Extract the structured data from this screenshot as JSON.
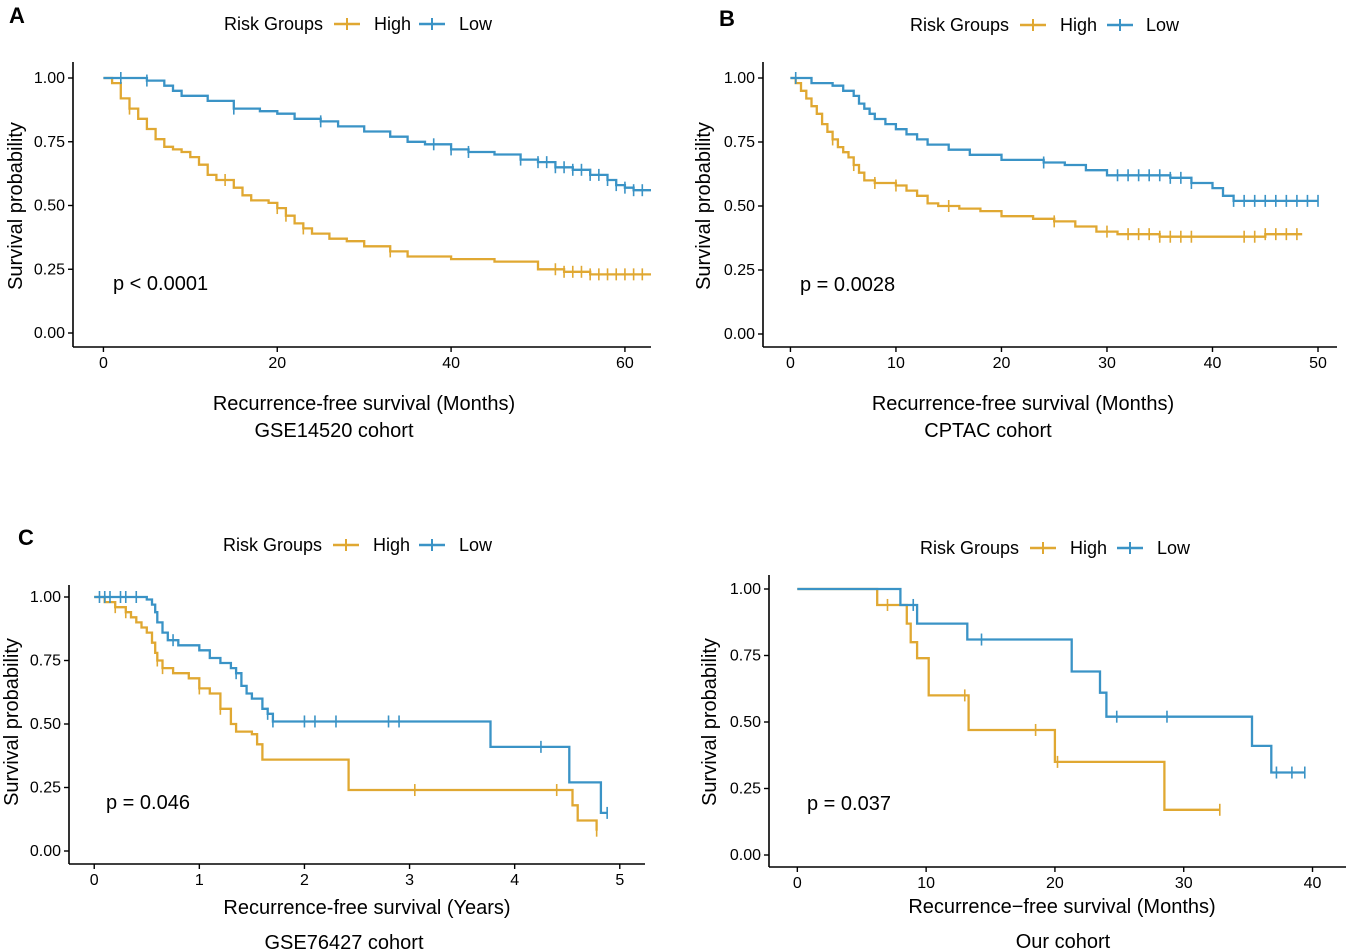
{
  "figure": {
    "series_names": [
      "High",
      "Low"
    ],
    "legend_title": "Risk Groups",
    "colors": {
      "High": "#E0A832",
      "Low": "#3A93C6"
    },
    "y_label": "Survival probability"
  },
  "chart_data": [
    {
      "type": "line",
      "panel": "A",
      "cohort": "GSE14520 cohort",
      "xlabel": "Recurrence-free survival (Months)",
      "ylabel": "Survival probability",
      "p_value": "p < 0.0001",
      "xlim": [
        -3.5,
        63
      ],
      "ylim": [
        0,
        1
      ],
      "x_ticks": [
        0,
        20,
        40,
        60
      ],
      "y_ticks": [
        0,
        0.25,
        0.5,
        0.75,
        1
      ],
      "y_tick_labels": [
        "0.00",
        "0.25",
        "0.50",
        "0.75",
        "1.00"
      ],
      "series": [
        {
          "name": "High",
          "steps": [
            [
              0,
              1
            ],
            [
              1,
              0.98
            ],
            [
              2,
              0.92
            ],
            [
              3,
              0.88
            ],
            [
              4,
              0.84
            ],
            [
              5,
              0.8
            ],
            [
              6,
              0.76
            ],
            [
              7,
              0.73
            ],
            [
              8,
              0.72
            ],
            [
              9,
              0.71
            ],
            [
              10,
              0.69
            ],
            [
              11,
              0.66
            ],
            [
              12,
              0.62
            ],
            [
              13,
              0.6
            ],
            [
              15,
              0.57
            ],
            [
              16,
              0.54
            ],
            [
              17,
              0.52
            ],
            [
              19,
              0.51
            ],
            [
              20,
              0.49
            ],
            [
              21,
              0.46
            ],
            [
              22,
              0.43
            ],
            [
              23,
              0.41
            ],
            [
              24,
              0.39
            ],
            [
              26,
              0.37
            ],
            [
              28,
              0.36
            ],
            [
              30,
              0.34
            ],
            [
              33,
              0.32
            ],
            [
              35,
              0.3
            ],
            [
              38,
              0.3
            ],
            [
              40,
              0.29
            ],
            [
              45,
              0.28
            ],
            [
              50,
              0.25
            ],
            [
              53,
              0.24
            ],
            [
              56,
              0.23
            ],
            [
              60,
              0.23
            ],
            [
              63,
              0.23
            ]
          ],
          "censor_x": [
            3,
            14,
            20,
            21,
            23,
            33,
            52,
            53,
            54,
            55,
            56,
            57,
            58,
            59,
            60,
            61,
            62
          ]
        },
        {
          "name": "Low",
          "steps": [
            [
              0,
              1
            ],
            [
              5,
              0.99
            ],
            [
              7,
              0.97
            ],
            [
              8,
              0.95
            ],
            [
              9,
              0.93
            ],
            [
              12,
              0.91
            ],
            [
              15,
              0.88
            ],
            [
              18,
              0.87
            ],
            [
              20,
              0.86
            ],
            [
              22,
              0.84
            ],
            [
              25,
              0.83
            ],
            [
              27,
              0.81
            ],
            [
              30,
              0.79
            ],
            [
              33,
              0.77
            ],
            [
              35,
              0.75
            ],
            [
              37,
              0.74
            ],
            [
              40,
              0.72
            ],
            [
              42,
              0.71
            ],
            [
              45,
              0.7
            ],
            [
              48,
              0.68
            ],
            [
              50,
              0.67
            ],
            [
              52,
              0.65
            ],
            [
              54,
              0.64
            ],
            [
              56,
              0.62
            ],
            [
              58,
              0.6
            ],
            [
              59,
              0.58
            ],
            [
              60,
              0.57
            ],
            [
              61,
              0.56
            ],
            [
              63,
              0.56
            ]
          ],
          "censor_x": [
            2,
            5,
            15,
            25,
            38,
            40,
            42,
            48,
            50,
            51,
            52,
            53,
            54,
            55,
            56,
            57,
            58,
            59,
            60,
            61,
            62
          ]
        }
      ]
    },
    {
      "type": "line",
      "panel": "B",
      "cohort": "CPTAC cohort",
      "xlabel": "Recurrence-free survival (Months)",
      "ylabel": "Survival probability",
      "p_value": "p = 0.0028",
      "xlim": [
        -2.6,
        51.8
      ],
      "ylim": [
        0,
        1
      ],
      "x_ticks": [
        0,
        10,
        20,
        30,
        40,
        50
      ],
      "y_ticks": [
        0,
        0.25,
        0.5,
        0.75,
        1
      ],
      "y_tick_labels": [
        "0.00",
        "0.25",
        "0.50",
        "0.75",
        "1.00"
      ],
      "series": [
        {
          "name": "High",
          "steps": [
            [
              0,
              1
            ],
            [
              0.5,
              0.98
            ],
            [
              1,
              0.95
            ],
            [
              1.5,
              0.92
            ],
            [
              2,
              0.89
            ],
            [
              2.5,
              0.86
            ],
            [
              3,
              0.82
            ],
            [
              3.5,
              0.79
            ],
            [
              4,
              0.76
            ],
            [
              4.5,
              0.73
            ],
            [
              5,
              0.71
            ],
            [
              5.5,
              0.69
            ],
            [
              6,
              0.66
            ],
            [
              6.5,
              0.63
            ],
            [
              7,
              0.6
            ],
            [
              8,
              0.59
            ],
            [
              10,
              0.58
            ],
            [
              11,
              0.56
            ],
            [
              12,
              0.54
            ],
            [
              13,
              0.51
            ],
            [
              14,
              0.5
            ],
            [
              16,
              0.49
            ],
            [
              18,
              0.48
            ],
            [
              20,
              0.46
            ],
            [
              23,
              0.45
            ],
            [
              25,
              0.44
            ],
            [
              27,
              0.42
            ],
            [
              29,
              0.4
            ],
            [
              31,
              0.39
            ],
            [
              35,
              0.38
            ],
            [
              42,
              0.38
            ],
            [
              45,
              0.39
            ],
            [
              48.5,
              0.39
            ]
          ],
          "censor_x": [
            4,
            6,
            8,
            10,
            15,
            25,
            30,
            32,
            33,
            34,
            35,
            36,
            37,
            38,
            43,
            44,
            45,
            46,
            47,
            48
          ]
        },
        {
          "name": "Low",
          "steps": [
            [
              0,
              1
            ],
            [
              2,
              0.98
            ],
            [
              4,
              0.97
            ],
            [
              5,
              0.95
            ],
            [
              6,
              0.93
            ],
            [
              6.5,
              0.9
            ],
            [
              7,
              0.88
            ],
            [
              7.5,
              0.86
            ],
            [
              8,
              0.84
            ],
            [
              9,
              0.82
            ],
            [
              10,
              0.8
            ],
            [
              11,
              0.78
            ],
            [
              12,
              0.76
            ],
            [
              13,
              0.74
            ],
            [
              15,
              0.72
            ],
            [
              17,
              0.7
            ],
            [
              20,
              0.68
            ],
            [
              24,
              0.67
            ],
            [
              26,
              0.66
            ],
            [
              28,
              0.64
            ],
            [
              30,
              0.62
            ],
            [
              36,
              0.61
            ],
            [
              38,
              0.59
            ],
            [
              40,
              0.57
            ],
            [
              41,
              0.54
            ],
            [
              42,
              0.52
            ],
            [
              46,
              0.52
            ],
            [
              49,
              0.52
            ],
            [
              50,
              0.52
            ]
          ],
          "censor_x": [
            0.5,
            24,
            31,
            32,
            33,
            34,
            35,
            36,
            37,
            38,
            42,
            43,
            44,
            45,
            46,
            47,
            48,
            49,
            50
          ]
        }
      ]
    },
    {
      "type": "line",
      "panel": "C",
      "cohort": "GSE76427 cohort",
      "xlabel": "Recurrence-free survival (Years)",
      "ylabel": "Survival probability",
      "p_value": "p = 0.046",
      "xlim": [
        -0.24,
        5.24
      ],
      "ylim": [
        0,
        1
      ],
      "x_ticks": [
        0,
        1,
        2,
        3,
        4,
        5
      ],
      "y_ticks": [
        0,
        0.25,
        0.5,
        0.75,
        1
      ],
      "y_tick_labels": [
        "0.00",
        "0.25",
        "0.50",
        "0.75",
        "1.00"
      ],
      "series": [
        {
          "name": "High",
          "steps": [
            [
              0,
              1
            ],
            [
              0.1,
              0.98
            ],
            [
              0.2,
              0.96
            ],
            [
              0.3,
              0.94
            ],
            [
              0.35,
              0.92
            ],
            [
              0.4,
              0.9
            ],
            [
              0.45,
              0.88
            ],
            [
              0.5,
              0.86
            ],
            [
              0.55,
              0.82
            ],
            [
              0.58,
              0.78
            ],
            [
              0.6,
              0.75
            ],
            [
              0.65,
              0.72
            ],
            [
              0.75,
              0.7
            ],
            [
              0.9,
              0.68
            ],
            [
              1,
              0.64
            ],
            [
              1.1,
              0.62
            ],
            [
              1.2,
              0.56
            ],
            [
              1.3,
              0.5
            ],
            [
              1.35,
              0.47
            ],
            [
              1.5,
              0.46
            ],
            [
              1.55,
              0.42
            ],
            [
              1.6,
              0.36
            ],
            [
              2.4,
              0.36
            ],
            [
              2.42,
              0.24
            ],
            [
              4.5,
              0.24
            ],
            [
              4.55,
              0.18
            ],
            [
              4.6,
              0.12
            ],
            [
              4.78,
              0.08
            ]
          ],
          "censor_x": [
            0.2,
            0.3,
            0.6,
            0.65,
            1.0,
            1.2,
            3.05,
            4.4,
            4.78
          ]
        },
        {
          "name": "Low",
          "steps": [
            [
              0,
              1
            ],
            [
              0.5,
              0.99
            ],
            [
              0.55,
              0.97
            ],
            [
              0.58,
              0.94
            ],
            [
              0.6,
              0.9
            ],
            [
              0.65,
              0.86
            ],
            [
              0.7,
              0.83
            ],
            [
              0.8,
              0.81
            ],
            [
              1,
              0.79
            ],
            [
              1.1,
              0.76
            ],
            [
              1.2,
              0.74
            ],
            [
              1.3,
              0.72
            ],
            [
              1.35,
              0.7
            ],
            [
              1.4,
              0.65
            ],
            [
              1.45,
              0.62
            ],
            [
              1.5,
              0.6
            ],
            [
              1.6,
              0.56
            ],
            [
              1.65,
              0.54
            ],
            [
              1.7,
              0.51
            ],
            [
              2.5,
              0.51
            ],
            [
              3.75,
              0.51
            ],
            [
              3.77,
              0.41
            ],
            [
              4.5,
              0.41
            ],
            [
              4.52,
              0.27
            ],
            [
              4.8,
              0.27
            ],
            [
              4.82,
              0.15
            ],
            [
              4.88,
              0.15
            ]
          ],
          "censor_x": [
            0.05,
            0.1,
            0.15,
            0.25,
            0.3,
            0.4,
            0.75,
            1.35,
            1.65,
            1.7,
            2.0,
            2.1,
            2.3,
            2.8,
            2.9,
            4.25,
            4.88
          ]
        }
      ]
    },
    {
      "type": "line",
      "panel": "",
      "cohort": "Our cohort",
      "xlabel": "Recurrence−free survival (Months)",
      "ylabel": "Survival probability",
      "p_value": "p = 0.037",
      "xlim": [
        -2.2,
        42.6
      ],
      "ylim": [
        0,
        1
      ],
      "x_ticks": [
        0,
        10,
        20,
        30,
        40
      ],
      "y_ticks": [
        0,
        0.25,
        0.5,
        0.75,
        1
      ],
      "y_tick_labels": [
        "0.00",
        "0.25",
        "0.50",
        "0.75",
        "1.00"
      ],
      "series": [
        {
          "name": "High",
          "steps": [
            [
              0,
              1
            ],
            [
              6.2,
              0.94
            ],
            [
              8.5,
              0.87
            ],
            [
              8.8,
              0.8
            ],
            [
              9.3,
              0.74
            ],
            [
              10.2,
              0.6
            ],
            [
              13.3,
              0.47
            ],
            [
              20,
              0.35
            ],
            [
              28.5,
              0.17
            ],
            [
              32.8,
              0.17
            ]
          ],
          "censor_x": [
            7,
            13,
            18.5,
            20.2,
            32.8
          ]
        },
        {
          "name": "Low",
          "steps": [
            [
              0,
              1
            ],
            [
              8,
              0.94
            ],
            [
              9.3,
              0.87
            ],
            [
              13.2,
              0.81
            ],
            [
              21.3,
              0.69
            ],
            [
              23.5,
              0.61
            ],
            [
              24,
              0.52
            ],
            [
              35.3,
              0.41
            ],
            [
              36.8,
              0.31
            ],
            [
              39.4,
              0.31
            ]
          ],
          "censor_x": [
            9,
            14.3,
            24.8,
            28.7,
            37.2,
            38.4,
            39.4
          ]
        }
      ]
    }
  ]
}
